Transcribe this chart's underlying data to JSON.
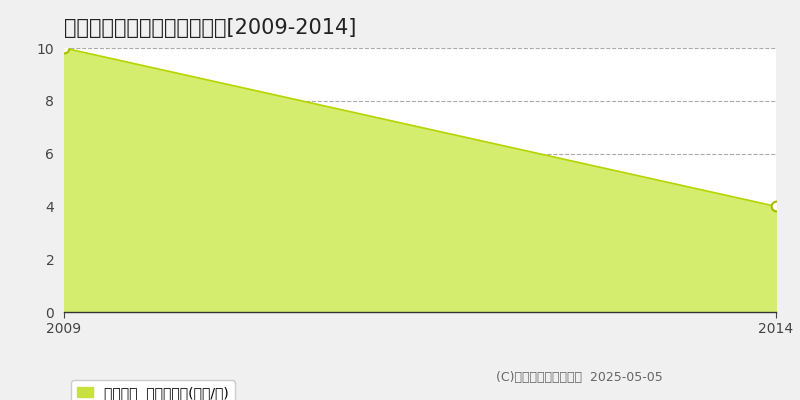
{
  "title": "北見市三住町　土地価格推移[2009-2014]",
  "x_values": [
    2009,
    2014
  ],
  "y_values": [
    10,
    4
  ],
  "fill_color": "#d4ed6e",
  "line_color": "#b8d400",
  "marker_color": "#aabb00",
  "background_color": "#f0f0f0",
  "plot_bg_color": "#ffffff",
  "xlim": [
    2009,
    2014
  ],
  "ylim": [
    0,
    10
  ],
  "yticks": [
    0,
    2,
    4,
    6,
    8,
    10
  ],
  "xticks": [
    2009,
    2014
  ],
  "grid_color": "#aaaaaa",
  "grid_style": "--",
  "legend_label": "土地価格  平均坪単価(万円/坪)",
  "legend_marker_color": "#c8e040",
  "copyright_text": "(C)土地価格ドットコム  2025-05-05",
  "title_fontsize": 15,
  "tick_fontsize": 10,
  "legend_fontsize": 10,
  "copyright_fontsize": 9
}
